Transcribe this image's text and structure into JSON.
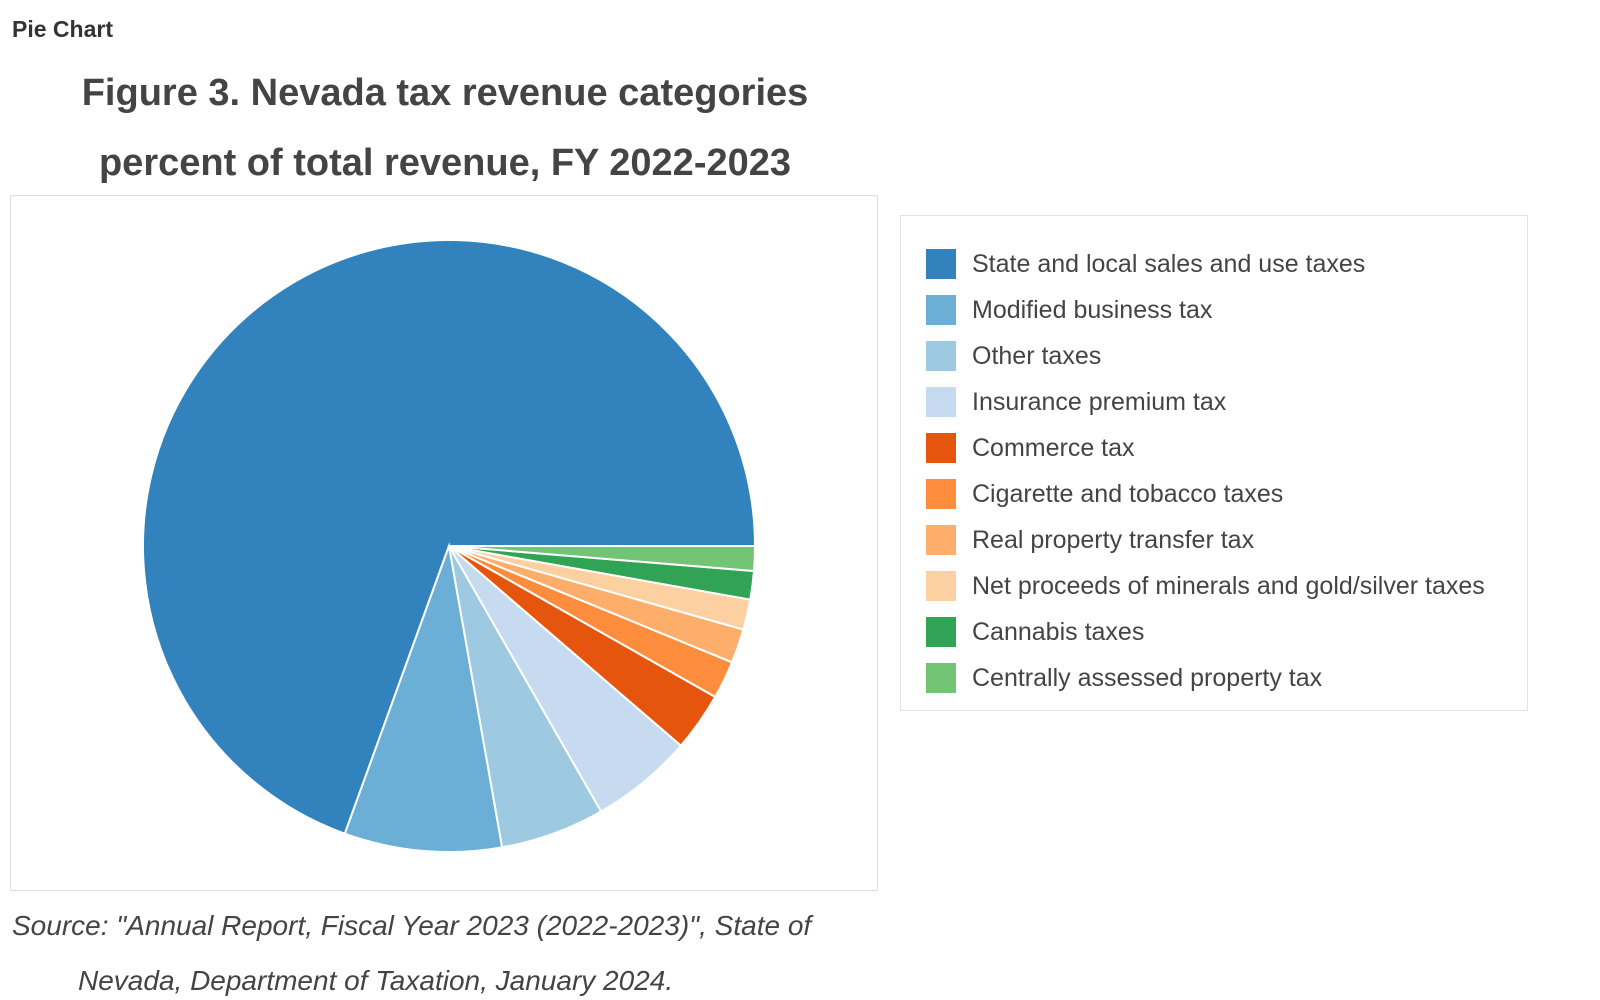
{
  "page_label": "Pie Chart",
  "title_lines": [
    "Figure 3. Nevada tax revenue categories",
    "percent of total revenue, FY 2022-2023"
  ],
  "source_lines": [
    "Source: \"Annual Report, Fiscal Year 2023 (2022-2023)\", State of",
    "Nevada, Department of Taxation, January 2024."
  ],
  "chart_data": {
    "type": "pie",
    "title": "Figure 3. Nevada tax revenue categories percent of total revenue, FY 2022-2023",
    "legend_position": "right",
    "labels": [
      "State and local sales and use taxes",
      "Modified business tax",
      "Other taxes",
      "Insurance premium tax",
      "Commerce tax",
      "Cigarette and tobacco taxes",
      "Real property transfer tax",
      "Net proceeds of minerals and gold/silver taxes",
      "Cannabis taxes",
      "Centrally assessed property tax"
    ],
    "values": [
      69.4,
      8.3,
      5.5,
      5.4,
      3.1,
      2.0,
      1.8,
      1.6,
      1.5,
      1.3
    ],
    "colors": [
      "#3182bd",
      "#6baed6",
      "#9ecae1",
      "#c6dbef",
      "#e6550d",
      "#fd8d3c",
      "#fdae6b",
      "#fdd0a2",
      "#31a354",
      "#74c476"
    ],
    "start_angle_deg": 0,
    "direction": "counterclockwise-from-right"
  }
}
